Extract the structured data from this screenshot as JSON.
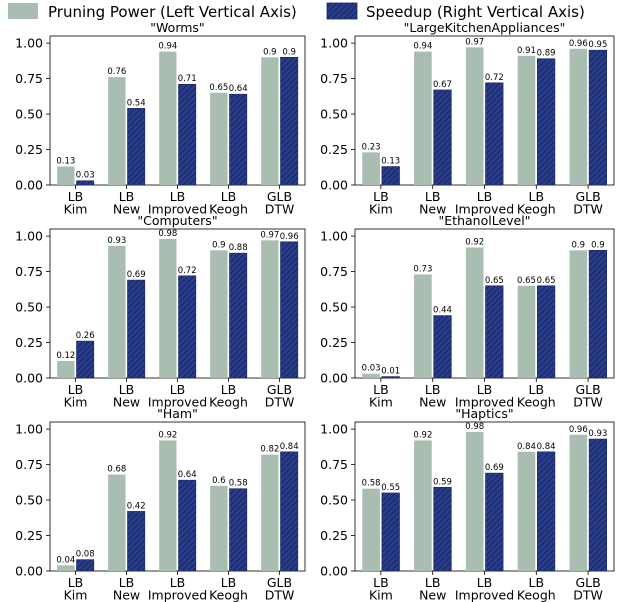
{
  "legend": {
    "items": [
      {
        "label": "Pruning Power (Left Vertical Axis)",
        "color": "#a9bdb1"
      },
      {
        "label": "Speedup (Right Vertical Axis)",
        "color": "#283c8a"
      }
    ]
  },
  "chart_data": [
    {
      "type": "bar",
      "title": "\"Worms\"",
      "categories": [
        [
          "LB",
          "Kim"
        ],
        [
          "LB",
          "New"
        ],
        [
          "LB",
          "Improved"
        ],
        [
          "LB",
          "Keogh"
        ],
        [
          "GLB",
          "DTW"
        ]
      ],
      "series": [
        {
          "name": "Pruning Power (Left Vertical Axis)",
          "values": [
            0.13,
            0.76,
            0.94,
            0.65,
            0.9
          ]
        },
        {
          "name": "Speedup (Right Vertical Axis)",
          "values": [
            0.03,
            0.54,
            0.71,
            0.64,
            0.9
          ]
        }
      ],
      "yticks": [
        "0.00",
        "0.25",
        "0.50",
        "0.75",
        "1.00"
      ],
      "ylim": [
        0,
        1.05
      ]
    },
    {
      "type": "bar",
      "title": "\"LargeKitchenAppliances\"",
      "categories": [
        [
          "LB",
          "Kim"
        ],
        [
          "LB",
          "New"
        ],
        [
          "LB",
          "Improved"
        ],
        [
          "LB",
          "Keogh"
        ],
        [
          "GLB",
          "DTW"
        ]
      ],
      "series": [
        {
          "name": "Pruning Power (Left Vertical Axis)",
          "values": [
            0.23,
            0.94,
            0.97,
            0.91,
            0.96
          ]
        },
        {
          "name": "Speedup (Right Vertical Axis)",
          "values": [
            0.13,
            0.67,
            0.72,
            0.89,
            0.95
          ]
        }
      ],
      "yticks": [
        "0.00",
        "0.25",
        "0.50",
        "0.75",
        "1.00"
      ],
      "ylim": [
        0,
        1.05
      ]
    },
    {
      "type": "bar",
      "title": "\"Computers\"",
      "categories": [
        [
          "LB",
          "Kim"
        ],
        [
          "LB",
          "New"
        ],
        [
          "LB",
          "Improved"
        ],
        [
          "LB",
          "Keogh"
        ],
        [
          "GLB",
          "DTW"
        ]
      ],
      "series": [
        {
          "name": "Pruning Power (Left Vertical Axis)",
          "values": [
            0.12,
            0.93,
            0.98,
            0.9,
            0.97
          ]
        },
        {
          "name": "Speedup (Right Vertical Axis)",
          "values": [
            0.26,
            0.69,
            0.72,
            0.88,
            0.96
          ]
        }
      ],
      "yticks": [
        "0.00",
        "0.25",
        "0.50",
        "0.75",
        "1.00"
      ],
      "ylim": [
        0,
        1.05
      ]
    },
    {
      "type": "bar",
      "title": "\"EthanolLevel\"",
      "categories": [
        [
          "LB",
          "Kim"
        ],
        [
          "LB",
          "New"
        ],
        [
          "LB",
          "Improved"
        ],
        [
          "LB",
          "Keogh"
        ],
        [
          "GLB",
          "DTW"
        ]
      ],
      "series": [
        {
          "name": "Pruning Power (Left Vertical Axis)",
          "values": [
            0.03,
            0.73,
            0.92,
            0.65,
            0.9
          ]
        },
        {
          "name": "Speedup (Right Vertical Axis)",
          "values": [
            0.01,
            0.44,
            0.65,
            0.65,
            0.9
          ]
        }
      ],
      "yticks": [
        "0.00",
        "0.25",
        "0.50",
        "0.75",
        "1.00"
      ],
      "ylim": [
        0,
        1.05
      ]
    },
    {
      "type": "bar",
      "title": "\"Ham\"",
      "categories": [
        [
          "LB",
          "Kim"
        ],
        [
          "LB",
          "New"
        ],
        [
          "LB",
          "Improved"
        ],
        [
          "LB",
          "Keogh"
        ],
        [
          "GLB",
          "DTW"
        ]
      ],
      "series": [
        {
          "name": "Pruning Power (Left Vertical Axis)",
          "values": [
            0.04,
            0.68,
            0.92,
            0.6,
            0.82
          ]
        },
        {
          "name": "Speedup (Right Vertical Axis)",
          "values": [
            0.08,
            0.42,
            0.64,
            0.58,
            0.84
          ]
        }
      ],
      "yticks": [
        "0.00",
        "0.25",
        "0.50",
        "0.75",
        "1.00"
      ],
      "ylim": [
        0,
        1.05
      ]
    },
    {
      "type": "bar",
      "title": "\"Haptics\"",
      "categories": [
        [
          "LB",
          "Kim"
        ],
        [
          "LB",
          "New"
        ],
        [
          "LB",
          "Improved"
        ],
        [
          "LB",
          "Keogh"
        ],
        [
          "GLB",
          "DTW"
        ]
      ],
      "series": [
        {
          "name": "Pruning Power (Left Vertical Axis)",
          "values": [
            0.58,
            0.92,
            0.98,
            0.84,
            0.96
          ]
        },
        {
          "name": "Speedup (Right Vertical Axis)",
          "values": [
            0.55,
            0.59,
            0.69,
            0.84,
            0.93
          ]
        }
      ],
      "yticks": [
        "0.00",
        "0.25",
        "0.50",
        "0.75",
        "1.00"
      ],
      "ylim": [
        0,
        1.05
      ]
    }
  ]
}
